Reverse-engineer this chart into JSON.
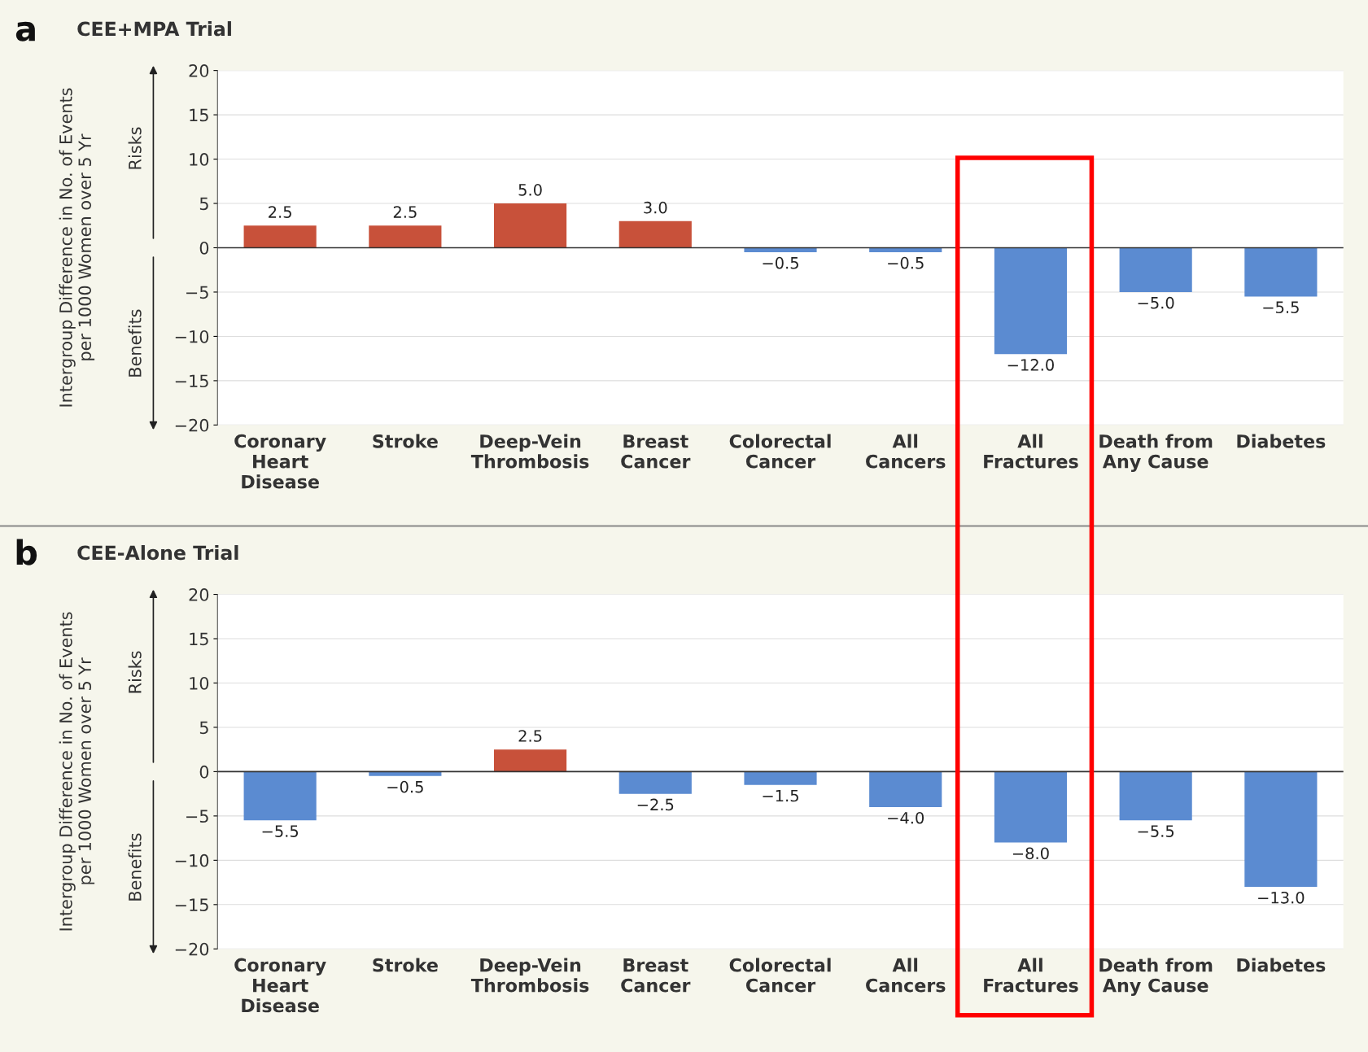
{
  "chart_data": [
    {
      "type": "bar",
      "title": "CEE+MPA Trial",
      "ylabel": "Intergroup Difference in No. of Events\nper 1000 Women over 5 Yr",
      "categories": [
        "Coronary\nHeart\nDisease",
        "Stroke",
        "Deep-Vein\nThrombosis",
        "Breast\nCancer",
        "Colorectal\nCancer",
        "All\nCancers",
        "All\nFractures",
        "Death from\nAny Cause",
        "Diabetes"
      ],
      "values": [
        2.5,
        2.5,
        5.0,
        3.0,
        -0.5,
        -0.5,
        -12.0,
        -5.0,
        -5.5
      ],
      "colors": [
        "#c8513a",
        "#c8513a",
        "#c8513a",
        "#c8513a",
        "#5b8bd1",
        "#5b8bd1",
        "#5b8bd1",
        "#5b8bd1",
        "#5b8bd1"
      ],
      "value_labels": [
        "2.5",
        "2.5",
        "5.0",
        "3.0",
        "−0.5",
        "−0.5",
        "−12.0",
        "−5.0",
        "−5.5"
      ],
      "ylim": [
        -20,
        20
      ],
      "yticks": [
        {
          "value": -20,
          "label": "−20"
        },
        {
          "value": -15,
          "label": "−15"
        },
        {
          "value": -10,
          "label": "−10"
        },
        {
          "value": -5,
          "label": "−5"
        },
        0,
        5,
        10,
        15,
        20
      ],
      "grid": "y",
      "annotations": [
        "a",
        "Risks",
        "Benefits"
      ]
    },
    {
      "type": "bar",
      "title": "CEE-Alone Trial",
      "ylabel": "Intergroup Difference in No. of Events\nper 1000 Women over 5 Yr",
      "categories": [
        "Coronary\nHeart\nDisease",
        "Stroke",
        "Deep-Vein\nThrombosis",
        "Breast\nCancer",
        "Colorectal\nCancer",
        "All\nCancers",
        "All\nFractures",
        "Death from\nAny Cause",
        "Diabetes"
      ],
      "values": [
        -5.5,
        -0.5,
        2.5,
        -2.5,
        -1.5,
        -4.0,
        -8.0,
        -5.5,
        -13.0
      ],
      "colors": [
        "#5b8bd1",
        "#5b8bd1",
        "#c8513a",
        "#5b8bd1",
        "#5b8bd1",
        "#5b8bd1",
        "#5b8bd1",
        "#5b8bd1",
        "#5b8bd1"
      ],
      "value_labels": [
        "−5.5",
        "−0.5",
        "2.5",
        "−2.5",
        "−1.5",
        "−4.0",
        "−8.0",
        "−5.5",
        "−13.0"
      ],
      "ylim": [
        -20,
        20
      ],
      "yticks": [
        {
          "value": -20,
          "label": "−20"
        },
        {
          "value": -15,
          "label": "−15"
        },
        {
          "value": -10,
          "label": "−10"
        },
        {
          "value": -5,
          "label": "−5"
        },
        0,
        5,
        10,
        15,
        20
      ],
      "grid": "y",
      "annotations": [
        "b",
        "Risks",
        "Benefits"
      ]
    }
  ]
}
